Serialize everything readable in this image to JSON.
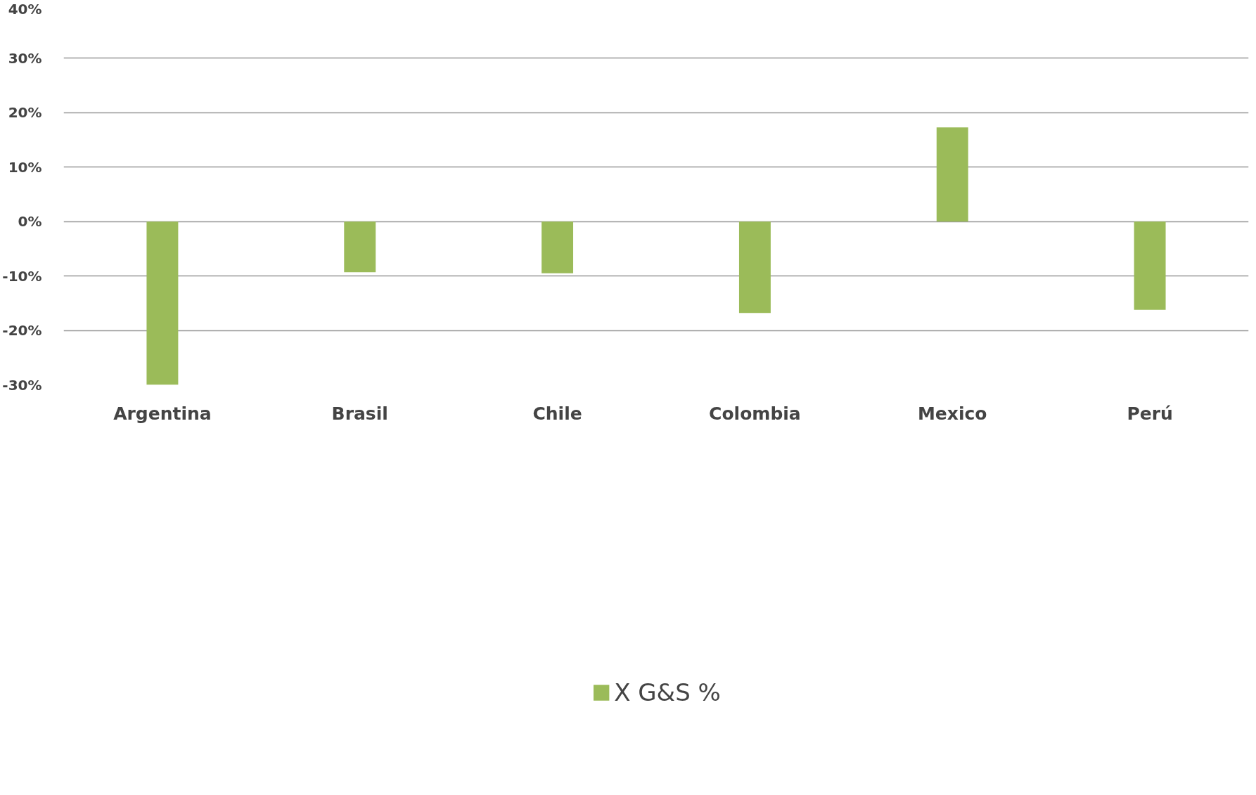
{
  "chart_data": {
    "type": "bar",
    "categories": [
      "Argentina",
      "Brasil",
      "Chile",
      "Colombia",
      "Mexico",
      "Perú"
    ],
    "series": [
      {
        "name": "X G&S %",
        "color": "#9bbb59",
        "values": [
          -30,
          -9.3,
          -9.5,
          -16.8,
          17.3,
          -16.2
        ]
      }
    ],
    "ylim": [
      -30,
      40
    ],
    "yticks": [
      {
        "value": -30,
        "label": "-30%"
      },
      {
        "value": -20,
        "label": "-20%"
      },
      {
        "value": -10,
        "label": "-10%"
      },
      {
        "value": 0,
        "label": "0%"
      },
      {
        "value": 10,
        "label": "10%"
      },
      {
        "value": 20,
        "label": "20%"
      },
      {
        "value": 30,
        "label": "30%"
      },
      {
        "value": 40,
        "label": "40%"
      }
    ],
    "grid": "y",
    "legend": "bottom"
  }
}
